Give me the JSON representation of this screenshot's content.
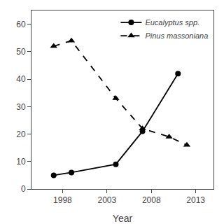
{
  "chart_data": {
    "type": "line",
    "xlabel": "Year",
    "series": [
      {
        "name": "Eucalyptus spp.",
        "color": "black",
        "line_style": "solid",
        "marker": "circle",
        "x": [
          1997,
          1999,
          2004,
          2007,
          2011
        ],
        "values": [
          5,
          6,
          9,
          21,
          42
        ]
      },
      {
        "name": "Pinus massoniana",
        "color": "black",
        "line_style": "dashed",
        "marker": "triangle",
        "x": [
          1997,
          1999,
          2004,
          2007,
          2010,
          2012
        ],
        "values": [
          52,
          54,
          33,
          22,
          19,
          16
        ]
      }
    ],
    "xlim": [
      1994.5,
      2015
    ],
    "xticks": [
      1998,
      2003,
      2008,
      2013
    ],
    "ylim": [
      0,
      65
    ],
    "yticks": [
      0,
      10,
      20,
      30,
      40,
      50,
      60
    ],
    "grid": false,
    "legend": "upper right"
  }
}
